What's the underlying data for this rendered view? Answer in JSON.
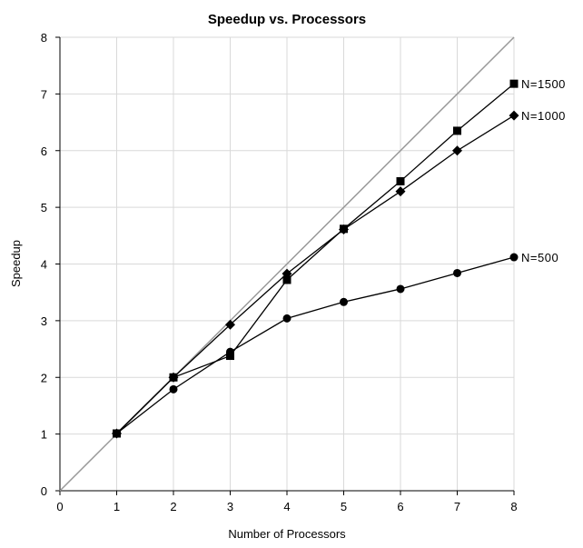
{
  "chart_data": {
    "type": "line",
    "title": "Speedup vs. Processors",
    "xlabel": "Number of Processors",
    "ylabel": "Speedup",
    "xlim": [
      0,
      8
    ],
    "ylim": [
      0,
      8
    ],
    "xticks": [
      0,
      1,
      2,
      3,
      4,
      5,
      6,
      7,
      8
    ],
    "yticks": [
      0,
      1,
      2,
      3,
      4,
      5,
      6,
      7,
      8
    ],
    "grid": true,
    "reference_line": {
      "x": [
        0,
        8
      ],
      "y": [
        0,
        8
      ],
      "color": "#999999"
    },
    "series": [
      {
        "name": "N=1500",
        "marker": "square",
        "color": "#000000",
        "x": [
          1,
          2,
          3,
          4,
          5,
          6,
          7,
          8
        ],
        "y": [
          1.01,
          2.0,
          2.38,
          3.72,
          4.62,
          5.46,
          6.35,
          7.18
        ]
      },
      {
        "name": "N=1000",
        "marker": "diamond",
        "color": "#000000",
        "x": [
          1,
          2,
          3,
          4,
          5,
          6,
          7,
          8
        ],
        "y": [
          1.01,
          2.0,
          2.93,
          3.83,
          4.61,
          5.28,
          6.0,
          6.62
        ]
      },
      {
        "name": "N=500",
        "marker": "circle",
        "color": "#000000",
        "x": [
          1,
          2,
          3,
          4,
          5,
          6,
          7,
          8
        ],
        "y": [
          1.01,
          1.79,
          2.45,
          3.04,
          3.33,
          3.56,
          3.84,
          4.12
        ]
      }
    ]
  }
}
